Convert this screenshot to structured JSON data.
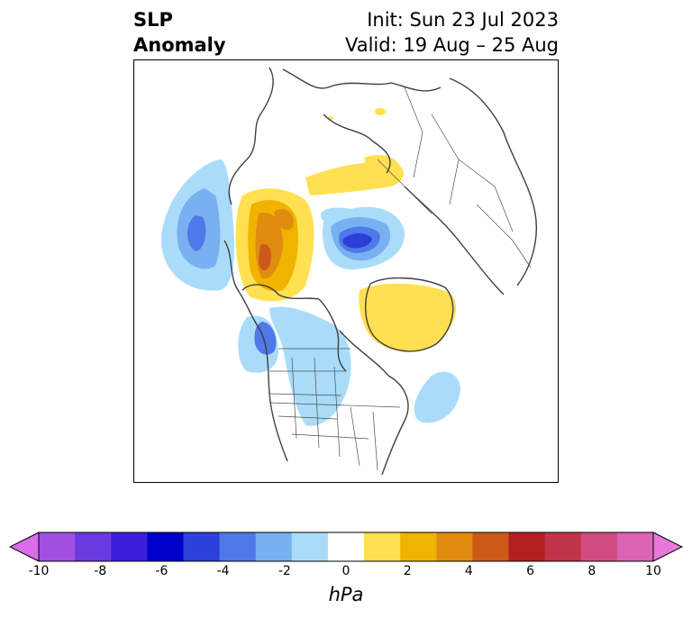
{
  "header": {
    "title_line1": "SLP",
    "title_line2": "Anomaly",
    "init_label": "Init: Sun 23 Jul 2023",
    "valid_label": "Valid: 19 Aug – 25 Aug"
  },
  "colorbar": {
    "unit": "hPa",
    "min": -10,
    "max": 10,
    "extend": "both",
    "tick_labels": [
      "-10",
      "-8",
      "-6",
      "-4",
      "-2",
      "0",
      "2",
      "4",
      "6",
      "8",
      "10"
    ],
    "colors": [
      "#d86ee8",
      "#a050e0",
      "#6a3ae0",
      "#3a20d8",
      "#0000c8",
      "#2a40d8",
      "#4f78e8",
      "#78b0f2",
      "#aadcfa",
      "#ffffff",
      "#ffe050",
      "#f0b400",
      "#e08c10",
      "#cc5a18",
      "#b42020",
      "#c03448",
      "#d04c80",
      "#dc64b4",
      "#e878d8"
    ]
  },
  "map": {
    "projection": "north-polar-stereographic",
    "features": [
      "coastlines",
      "country-borders",
      "state-province-borders"
    ]
  }
}
